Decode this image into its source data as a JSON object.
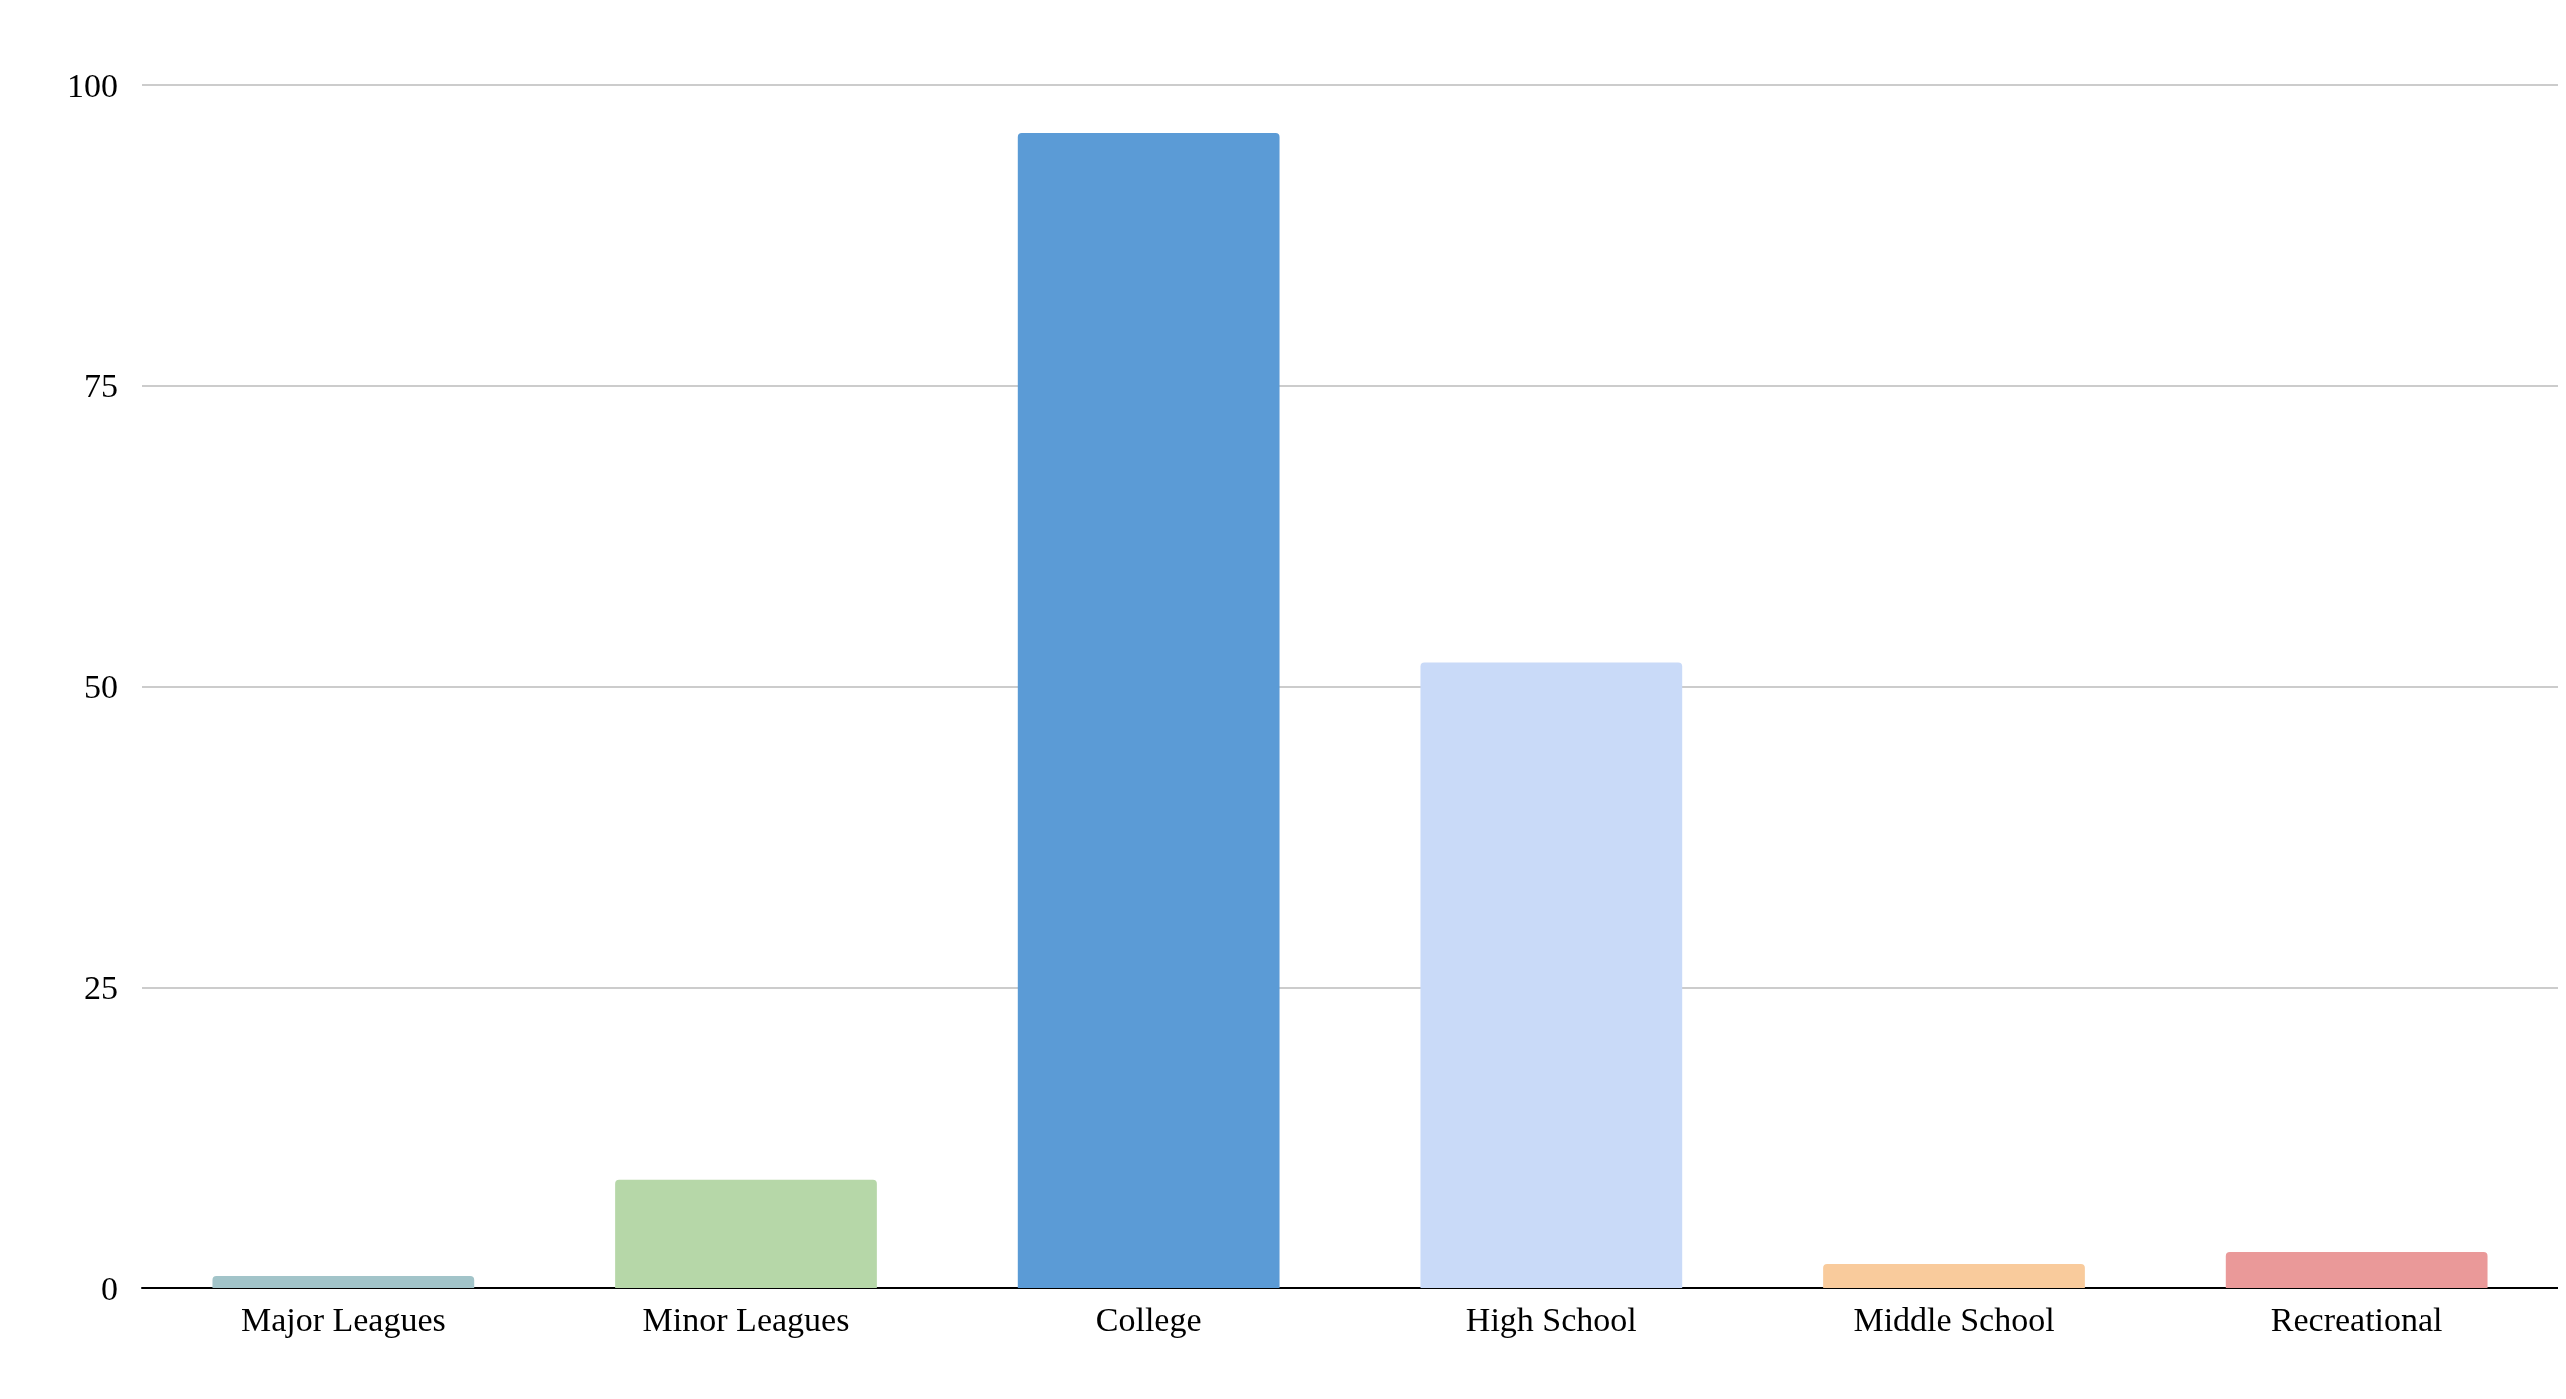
{
  "chart_data": {
    "type": "bar",
    "categories": [
      "Major Leagues",
      "Minor Leagues",
      "College",
      "High School",
      "Middle School",
      "Recreational"
    ],
    "values": [
      1,
      9,
      96,
      52,
      2,
      3
    ],
    "colors": [
      "#a2c4c9",
      "#b6d7a8",
      "#5b9bd6",
      "#c9daf8",
      "#f9cb9c",
      "#ea9999"
    ],
    "ylim": [
      0,
      100
    ],
    "yticks": [
      0,
      25,
      50,
      75,
      100
    ],
    "grid": "y"
  }
}
